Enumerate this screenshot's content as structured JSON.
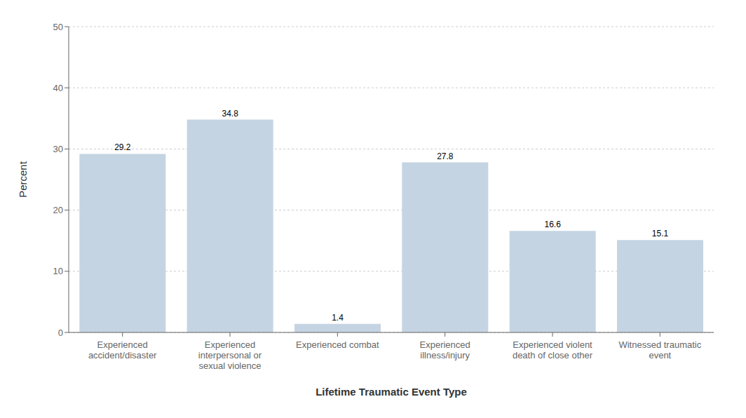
{
  "chart_data": {
    "type": "bar",
    "categories": [
      "Experienced\naccident/disaster",
      "Experienced\ninterpersonal or\nsexual violence",
      "Experienced combat",
      "Experienced\nillness/injury",
      "Experienced violent\ndeath of close other",
      "Witnessed traumatic\nevent"
    ],
    "values": [
      29.2,
      34.8,
      1.4,
      27.8,
      16.6,
      15.1
    ],
    "color": "#c5d4e3",
    "xlabel": "Lifetime Traumatic Event Type",
    "ylabel": "Percent",
    "ylim": [
      0,
      50
    ],
    "yticks": [
      0,
      10,
      20,
      30,
      40,
      50
    ],
    "grid": true,
    "data_labels": true
  }
}
